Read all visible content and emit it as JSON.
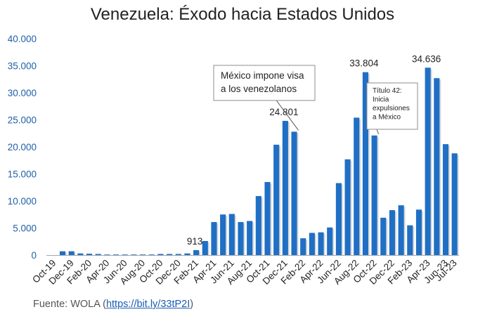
{
  "chart_data": {
    "type": "bar",
    "title": "Venezuela: Éxodo hacia Estados Unidos",
    "xlabel": "",
    "ylabel": "",
    "ylim": [
      0,
      40000
    ],
    "yticks": [
      "0",
      "5.000",
      "10.000",
      "15.000",
      "20.000",
      "25.000",
      "30.000",
      "35.000",
      "40.000"
    ],
    "grid": false,
    "legend": "none",
    "bar_color": "#1f6fc5",
    "x_tick_labels": [
      "Oct-19",
      "Dec-19",
      "Feb-20",
      "Apr-20",
      "Jun-20",
      "Aug-20",
      "Oct-20",
      "Dec-20",
      "Feb-21",
      "Apr-21",
      "Jun-21",
      "Aug-21",
      "Oct-21",
      "Dec-21",
      "Feb-22",
      "Apr-22",
      "Jun-22",
      "Aug-22",
      "Oct-22",
      "Dec-22",
      "Feb-23",
      "Apr-23",
      "Jun-23",
      "Jul-23"
    ],
    "categories": [
      "Oct-19",
      "Nov-19",
      "Dec-19",
      "Jan-20",
      "Feb-20",
      "Mar-20",
      "Apr-20",
      "May-20",
      "Jun-20",
      "Jul-20",
      "Aug-20",
      "Sep-20",
      "Oct-20",
      "Nov-20",
      "Dec-20",
      "Jan-21",
      "Feb-21",
      "Mar-21",
      "Apr-21",
      "May-21",
      "Jun-21",
      "Jul-21",
      "Aug-21",
      "Sep-21",
      "Oct-21",
      "Nov-21",
      "Dec-21",
      "Jan-22",
      "Feb-22",
      "Mar-22",
      "Apr-22",
      "May-22",
      "Jun-22",
      "Jul-22",
      "Aug-22",
      "Sep-22",
      "Oct-22",
      "Nov-22",
      "Dec-22",
      "Jan-23",
      "Feb-23",
      "Mar-23",
      "Apr-23",
      "May-23",
      "Jun-23",
      "Jul-23"
    ],
    "values": [
      0,
      700,
      700,
      300,
      250,
      200,
      100,
      100,
      100,
      100,
      100,
      100,
      200,
      200,
      200,
      300,
      913,
      2600,
      6100,
      7500,
      7600,
      6100,
      6300,
      10900,
      13500,
      20400,
      24801,
      22800,
      3100,
      4100,
      4200,
      5100,
      13300,
      17700,
      25400,
      33804,
      22100,
      6900,
      8300,
      9200,
      5500,
      8400,
      34636,
      32700,
      20500,
      18800
    ],
    "data_labels": [
      {
        "category": "Feb-21",
        "text": "913"
      },
      {
        "category": "Dec-21",
        "text": "24.801"
      },
      {
        "category": "Sep-22",
        "text": "33.804"
      },
      {
        "category": "Apr-23",
        "text": "34.636"
      }
    ],
    "annotations": [
      {
        "lines": [
          "México impone visa",
          "a los venezolanos"
        ],
        "points_to": "Jan-22"
      },
      {
        "lines": [
          "Título 42:",
          "Inicia",
          "expulsiones",
          "a México"
        ],
        "points_to": "Oct-22"
      }
    ]
  },
  "source": {
    "prefix": "Fuente: WOLA (",
    "link": "https://bit.ly/33tP2I",
    "suffix": ")"
  }
}
